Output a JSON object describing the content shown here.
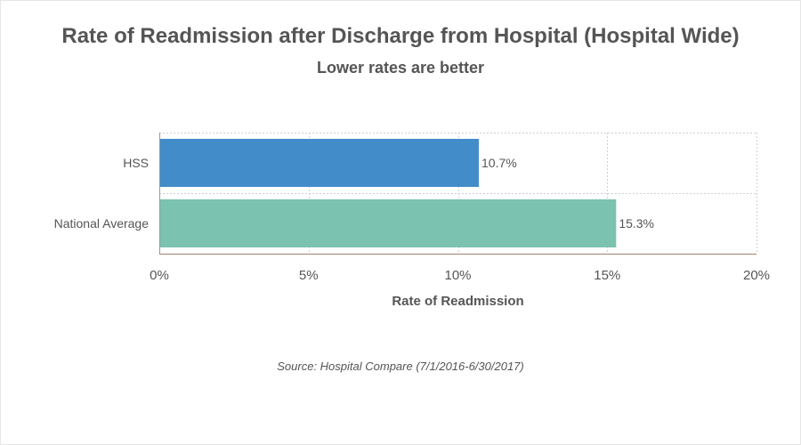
{
  "chart_data": {
    "type": "bar",
    "orientation": "horizontal",
    "title": "Rate of Readmission after Discharge from Hospital (Hospital Wide)",
    "subtitle": "Lower rates are better",
    "categories": [
      "HSS",
      "National Average"
    ],
    "values": [
      10.7,
      15.3
    ],
    "data_labels": [
      "10.7%",
      "15.3%"
    ],
    "bar_colors": [
      "#438cca",
      "#7bc2b1"
    ],
    "xlabel": "Rate of Readmission",
    "ylabel": "",
    "xlim": [
      0,
      20
    ],
    "x_ticks": [
      0,
      5,
      10,
      15,
      20
    ],
    "x_tick_labels": [
      "0%",
      "5%",
      "10%",
      "15%",
      "20%"
    ],
    "grid": true,
    "legend": "none"
  },
  "footer": {
    "source": "Source: Hospital Compare (7/1/2016-6/30/2017)"
  }
}
